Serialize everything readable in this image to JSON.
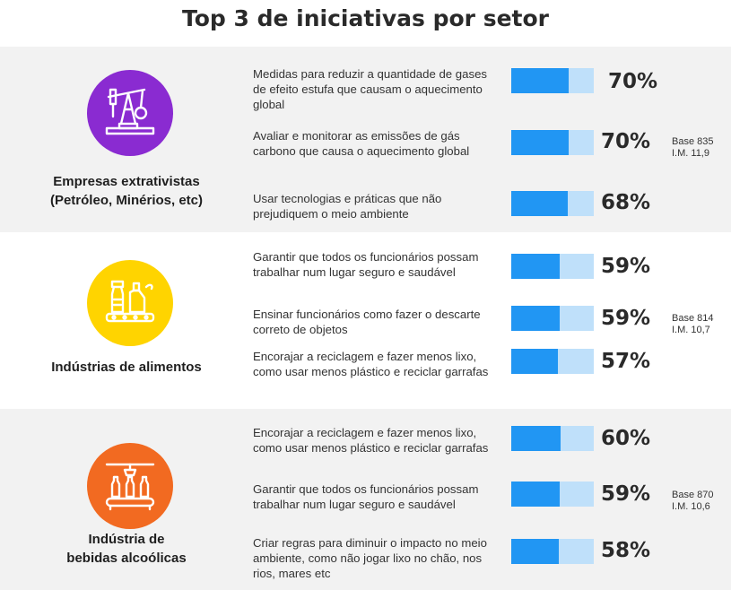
{
  "title": "Top 3 de iniciativas por setor",
  "colors": {
    "bar_fill": "#2196f3",
    "bar_track": "#bfe0fa",
    "purple": "#8a2bd1",
    "yellow": "#ffd400",
    "orange": "#f26a21"
  },
  "chart_data": {
    "type": "bar",
    "title": "Top 3 de iniciativas por setor",
    "unit": "%",
    "groups": [
      {
        "name_line1": "Empresas extrativistas",
        "name_line2": "(Petróleo, Minérios, etc)",
        "icon": "oil-pump-icon",
        "base_line1": "Base 835",
        "base_line2": "I.M. 11,9",
        "items": [
          {
            "label": "Medidas para reduzir a quantidade de gases de efeito estufa que causam o aquecimento global",
            "value": 70,
            "display": "70%"
          },
          {
            "label": "Avaliar e monitorar as emissões de gás carbono que causa o aquecimento global",
            "value": 70,
            "display": "70%"
          },
          {
            "label": "Usar tecnologias e práticas que não prejudiquem o meio ambiente",
            "value": 68,
            "display": "68%"
          }
        ]
      },
      {
        "name_line1": "Indústrias de alimentos",
        "name_line2": "",
        "icon": "food-production-icon",
        "base_line1": "Base 814",
        "base_line2": "I.M. 10,7",
        "items": [
          {
            "label": "Garantir que todos os funcionários possam trabalhar num lugar seguro e saudável",
            "value": 59,
            "display": "59%"
          },
          {
            "label": "Ensinar funcionários como fazer o descarte correto de objetos",
            "value": 59,
            "display": "59%"
          },
          {
            "label": "Encorajar a reciclagem e fazer menos lixo, como usar menos plástico e reciclar garrafas",
            "value": 57,
            "display": "57%"
          }
        ]
      },
      {
        "name_line1": "Indústria de",
        "name_line2": "bebidas alcoólicas",
        "icon": "bottling-line-icon",
        "base_line1": "Base 870",
        "base_line2": "I.M. 10,6",
        "items": [
          {
            "label": "Encorajar a reciclagem e fazer menos lixo, como usar menos plástico e reciclar garrafas",
            "value": 60,
            "display": "60%"
          },
          {
            "label": "Garantir que todos os funcionários possam trabalhar num lugar seguro e saudável",
            "value": 59,
            "display": "59%"
          },
          {
            "label": "Criar regras para diminuir o impacto no meio ambiente, como não jogar lixo no chão, nos rios, mares etc",
            "value": 58,
            "display": "58%"
          }
        ]
      }
    ]
  }
}
